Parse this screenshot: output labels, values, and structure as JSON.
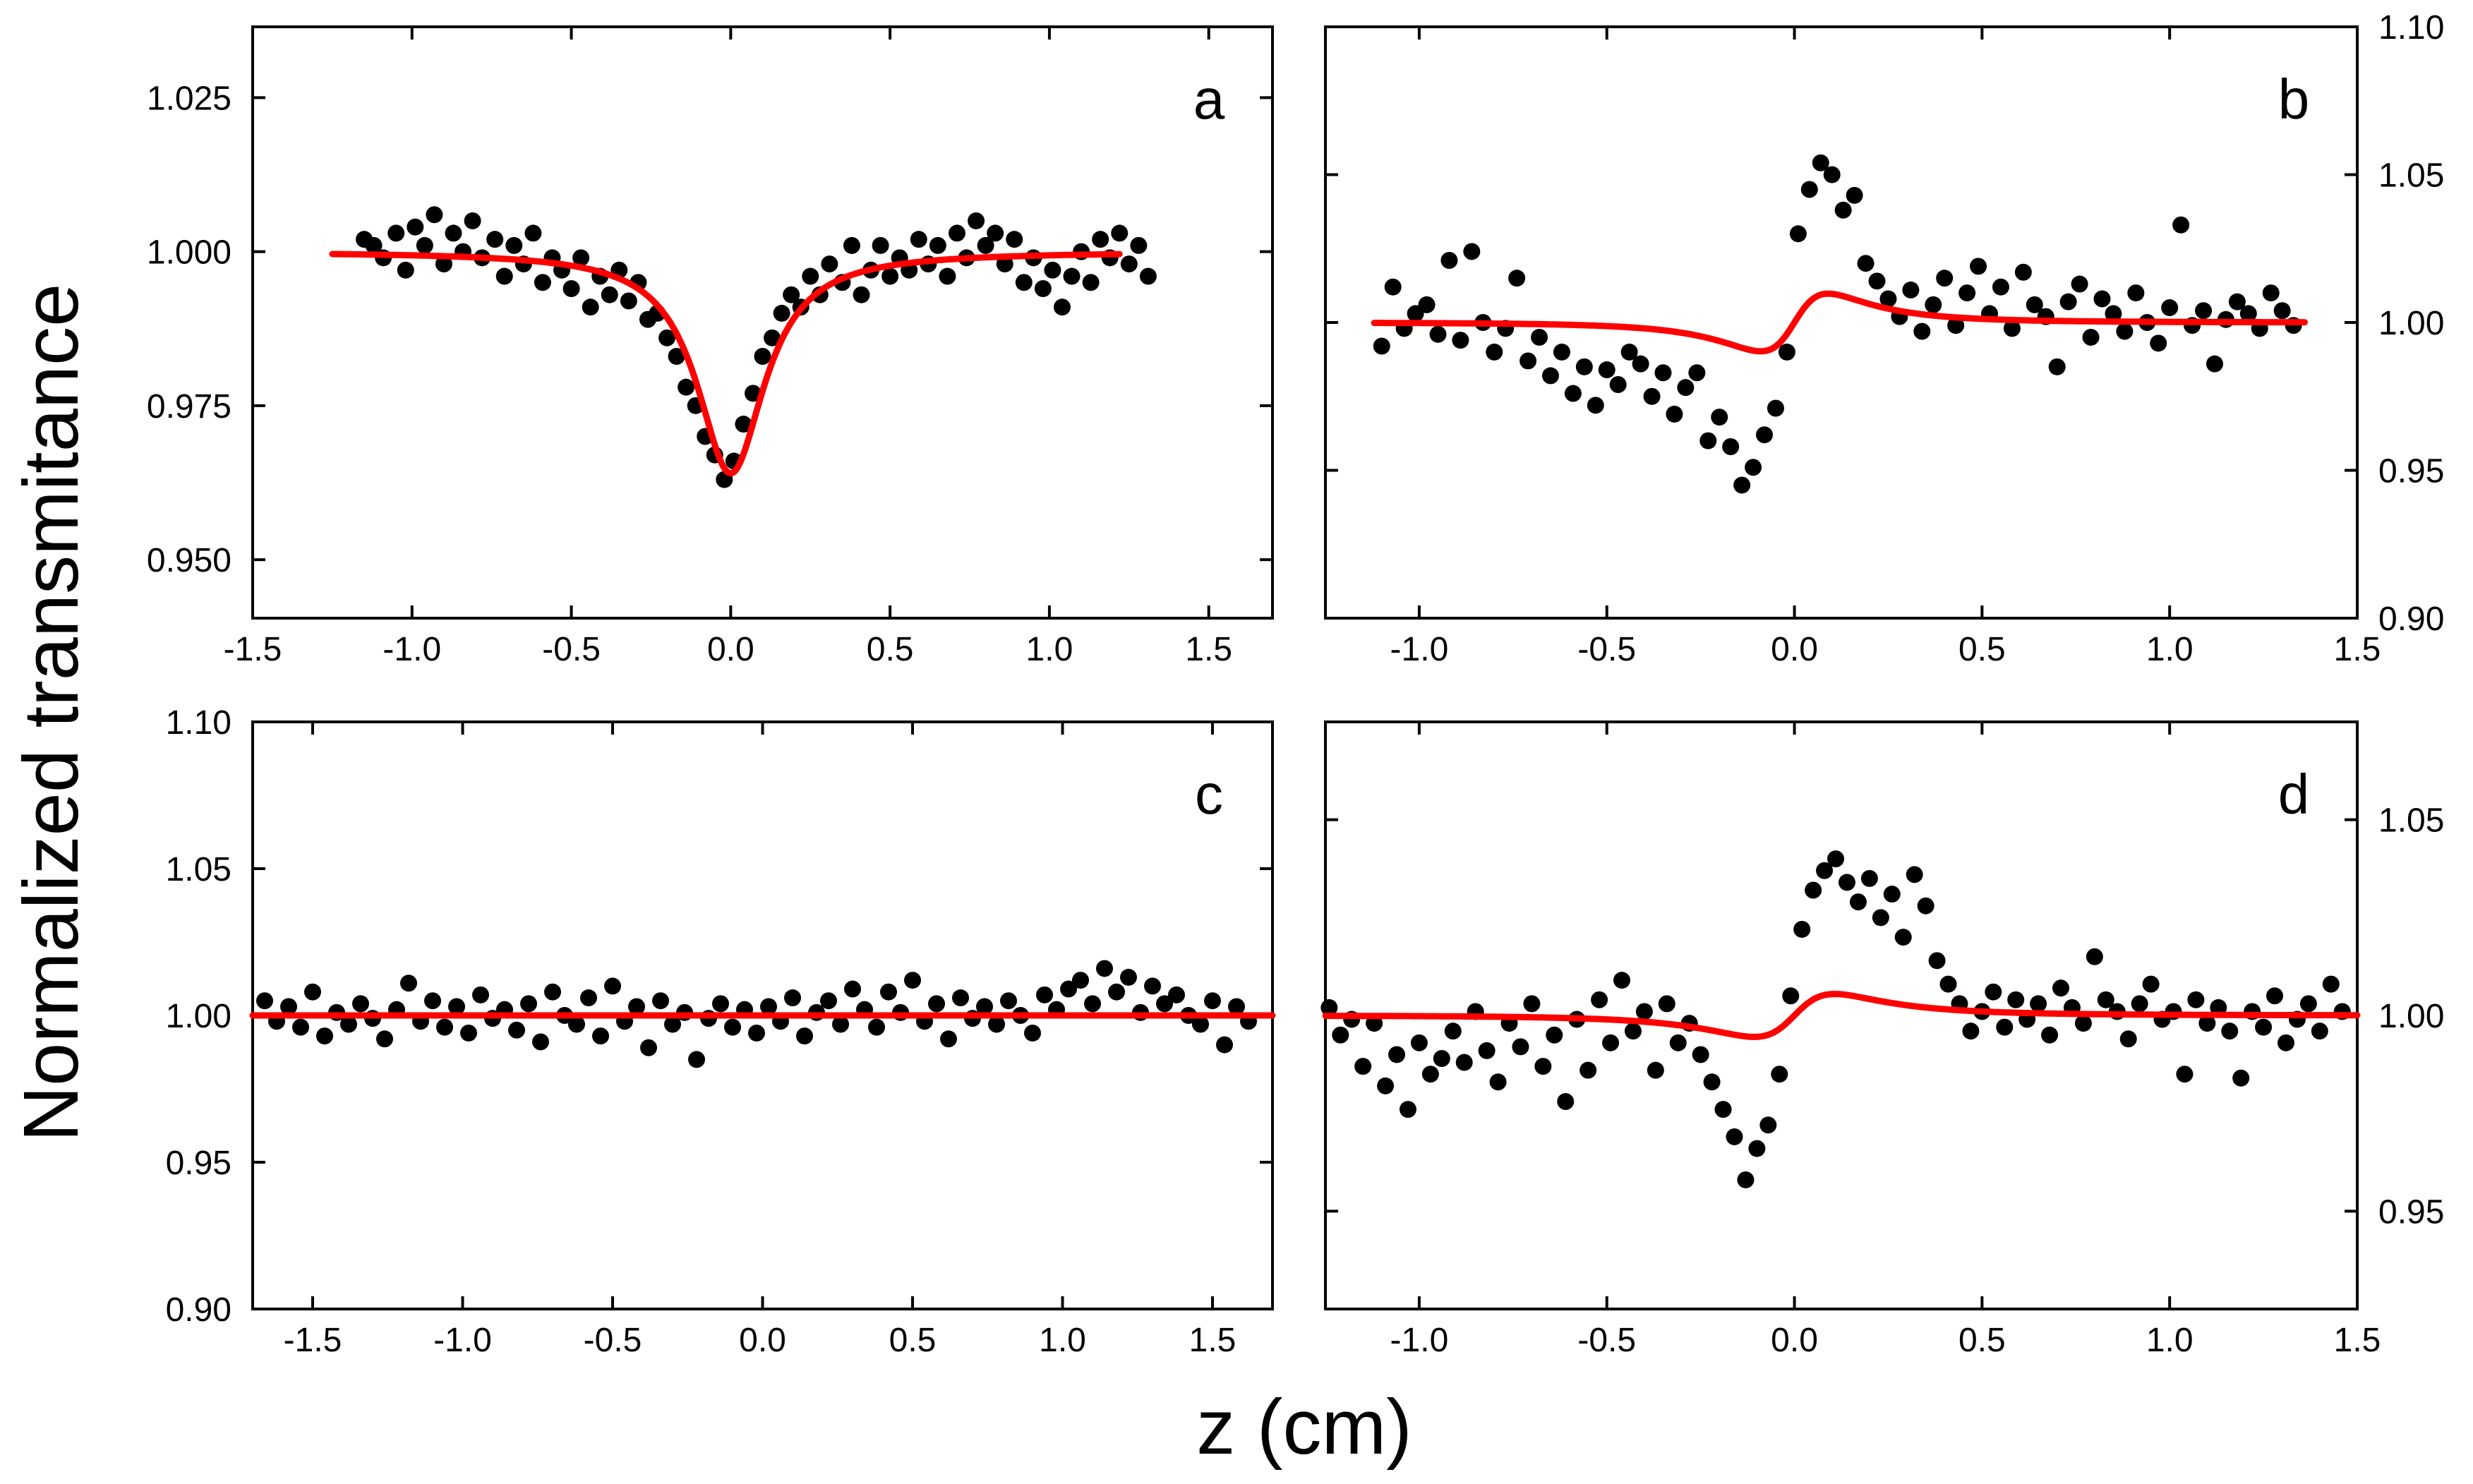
{
  "figure": {
    "ylabel": "Normalized transmitance",
    "xlabel": "z (cm)",
    "colors": {
      "fit": "#ff0000",
      "points": "#000000",
      "axes": "#000000"
    }
  },
  "chart_data": [
    {
      "panel": "a",
      "type": "scatter",
      "title": "a",
      "xlabel": "z (cm)",
      "ylabel": "Normalized transmitance",
      "xlim": [
        -1.5,
        1.7
      ],
      "ylim": [
        0.9405,
        1.0365
      ],
      "xticks": [
        -1.5,
        -1.0,
        -0.5,
        0.0,
        0.5,
        1.0,
        1.5
      ],
      "yticks": [
        0.95,
        0.975,
        1.0,
        1.025
      ],
      "xtick_labels": [
        "-1.5",
        "-1.0",
        "-0.5",
        "0.0",
        "0.5",
        "1.0",
        "1.5"
      ],
      "ytick_labels": [
        "0.950",
        "0.975",
        "1.000",
        "1.025"
      ],
      "yaxis_side": "left",
      "fit": {
        "model": "valley",
        "baseline": 1.0,
        "depth": 0.036,
        "width": 0.13,
        "xrange": [
          -1.25,
          1.22
        ]
      },
      "series": [
        {
          "name": "measured",
          "x": [
            -1.15,
            -1.12,
            -1.09,
            -1.05,
            -1.02,
            -0.99,
            -0.96,
            -0.93,
            -0.9,
            -0.87,
            -0.84,
            -0.81,
            -0.78,
            -0.74,
            -0.71,
            -0.68,
            -0.65,
            -0.62,
            -0.59,
            -0.56,
            -0.53,
            -0.5,
            -0.47,
            -0.44,
            -0.41,
            -0.38,
            -0.35,
            -0.32,
            -0.29,
            -0.26,
            -0.23,
            -0.2,
            -0.17,
            -0.14,
            -0.11,
            -0.08,
            -0.05,
            -0.02,
            0.01,
            0.04,
            0.07,
            0.1,
            0.13,
            0.16,
            0.19,
            0.22,
            0.25,
            0.28,
            0.31,
            0.35,
            0.38,
            0.41,
            0.44,
            0.47,
            0.5,
            0.53,
            0.56,
            0.59,
            0.62,
            0.65,
            0.68,
            0.71,
            0.74,
            0.77,
            0.8,
            0.83,
            0.86,
            0.89,
            0.92,
            0.95,
            0.98,
            1.01,
            1.04,
            1.07,
            1.1,
            1.13,
            1.16,
            1.19,
            1.22,
            1.25,
            1.28,
            1.31
          ],
          "y": [
            1.002,
            1.001,
            0.999,
            1.003,
            0.997,
            1.004,
            1.001,
            1.006,
            0.998,
            1.003,
            1.0,
            1.005,
            0.999,
            1.002,
            0.996,
            1.001,
            0.998,
            1.003,
            0.995,
            0.999,
            0.997,
            0.994,
            0.999,
            0.991,
            0.996,
            0.993,
            0.997,
            0.992,
            0.995,
            0.989,
            0.99,
            0.986,
            0.983,
            0.978,
            0.975,
            0.97,
            0.967,
            0.963,
            0.966,
            0.972,
            0.977,
            0.983,
            0.986,
            0.99,
            0.993,
            0.991,
            0.996,
            0.993,
            0.998,
            0.995,
            1.001,
            0.993,
            0.997,
            1.001,
            0.996,
            0.999,
            0.997,
            1.002,
            0.998,
            1.001,
            0.996,
            1.003,
            0.999,
            1.005,
            1.001,
            1.003,
            0.998,
            1.002,
            0.995,
            0.999,
            0.994,
            0.997,
            0.991,
            0.996,
            1.0,
            0.995,
            1.002,
            0.999,
            1.003,
            0.998,
            1.001,
            0.996
          ]
        }
      ]
    },
    {
      "panel": "b",
      "type": "scatter",
      "title": "b",
      "xlabel": "z (cm)",
      "ylabel": "Normalized transmitance",
      "xlim": [
        -1.25,
        1.5
      ],
      "ylim": [
        0.9,
        1.1
      ],
      "xticks": [
        -1.0,
        -0.5,
        0.0,
        0.5,
        1.0,
        1.5
      ],
      "yticks": [
        0.9,
        0.95,
        1.0,
        1.05,
        1.1
      ],
      "xtick_labels": [
        "-1.0",
        "-0.5",
        "0.0",
        "0.5",
        "1.0",
        "1.5"
      ],
      "ytick_labels": [
        "0.90",
        "0.95",
        "1.00",
        "1.05",
        "1.10"
      ],
      "yaxis_side": "right",
      "fit": {
        "model": "peak-valley",
        "baseline": 1.0,
        "amplitude": 0.048,
        "width": 0.105,
        "xrange": [
          -1.12,
          1.36
        ]
      },
      "series": [
        {
          "name": "measured",
          "x": [
            -1.1,
            -1.07,
            -1.04,
            -1.01,
            -0.98,
            -0.95,
            -0.92,
            -0.89,
            -0.86,
            -0.83,
            -0.8,
            -0.77,
            -0.74,
            -0.71,
            -0.68,
            -0.65,
            -0.62,
            -0.59,
            -0.56,
            -0.53,
            -0.5,
            -0.47,
            -0.44,
            -0.41,
            -0.38,
            -0.35,
            -0.32,
            -0.29,
            -0.26,
            -0.23,
            -0.2,
            -0.17,
            -0.14,
            -0.11,
            -0.08,
            -0.05,
            -0.02,
            0.01,
            0.04,
            0.07,
            0.1,
            0.13,
            0.16,
            0.19,
            0.22,
            0.25,
            0.28,
            0.31,
            0.34,
            0.37,
            0.4,
            0.43,
            0.46,
            0.49,
            0.52,
            0.55,
            0.58,
            0.61,
            0.64,
            0.67,
            0.7,
            0.73,
            0.76,
            0.79,
            0.82,
            0.85,
            0.88,
            0.91,
            0.94,
            0.97,
            1.0,
            1.03,
            1.06,
            1.09,
            1.12,
            1.15,
            1.18,
            1.21,
            1.24,
            1.27,
            1.3,
            1.33
          ],
          "y": [
            0.992,
            1.012,
            0.998,
            1.003,
            1.006,
            0.996,
            1.021,
            0.994,
            1.024,
            1.0,
            0.99,
            0.998,
            1.015,
            0.987,
            0.995,
            0.982,
            0.99,
            0.976,
            0.985,
            0.972,
            0.984,
            0.979,
            0.99,
            0.986,
            0.975,
            0.983,
            0.969,
            0.978,
            0.983,
            0.96,
            0.968,
            0.958,
            0.945,
            0.951,
            0.962,
            0.971,
            0.99,
            1.03,
            1.045,
            1.054,
            1.05,
            1.038,
            1.043,
            1.02,
            1.014,
            1.008,
            1.002,
            1.011,
            0.997,
            1.006,
            1.015,
            0.999,
            1.01,
            1.019,
            1.003,
            1.012,
            0.998,
            1.017,
            1.006,
            1.002,
            0.985,
            1.007,
            1.013,
            0.995,
            1.008,
            1.003,
            0.997,
            1.01,
            1.0,
            0.993,
            1.005,
            1.033,
            0.999,
            1.004,
            0.986,
            1.001,
            1.007,
            1.003,
            0.998,
            1.01,
            1.004,
            0.999
          ]
        }
      ]
    },
    {
      "panel": "c",
      "type": "scatter",
      "title": "c",
      "xlabel": "z (cm)",
      "ylabel": "Normalized transmitance",
      "xlim": [
        -1.7,
        1.7
      ],
      "ylim": [
        0.9,
        1.1
      ],
      "xticks": [
        -1.5,
        -1.0,
        -0.5,
        0.0,
        0.5,
        1.0,
        1.5
      ],
      "yticks": [
        0.9,
        0.95,
        1.0,
        1.05,
        1.1
      ],
      "xtick_labels": [
        "-1.5",
        "-1.0",
        "-0.5",
        "0.0",
        "0.5",
        "1.0",
        "1.5"
      ],
      "ytick_labels": [
        "0.90",
        "0.95",
        "1.00",
        "1.05",
        "1.10"
      ],
      "yaxis_side": "left",
      "fit": {
        "model": "flat",
        "baseline": 1.0,
        "xrange": [
          -1.7,
          1.7
        ]
      },
      "series": [
        {
          "name": "measured",
          "x": [
            -1.66,
            -1.62,
            -1.58,
            -1.54,
            -1.5,
            -1.46,
            -1.42,
            -1.38,
            -1.34,
            -1.3,
            -1.26,
            -1.22,
            -1.18,
            -1.14,
            -1.1,
            -1.06,
            -1.02,
            -0.98,
            -0.94,
            -0.9,
            -0.86,
            -0.82,
            -0.78,
            -0.74,
            -0.7,
            -0.66,
            -0.62,
            -0.58,
            -0.54,
            -0.5,
            -0.46,
            -0.42,
            -0.38,
            -0.34,
            -0.3,
            -0.26,
            -0.22,
            -0.18,
            -0.14,
            -0.1,
            -0.06,
            -0.02,
            0.02,
            0.06,
            0.1,
            0.14,
            0.18,
            0.22,
            0.26,
            0.3,
            0.34,
            0.38,
            0.42,
            0.46,
            0.5,
            0.54,
            0.58,
            0.62,
            0.66,
            0.7,
            0.74,
            0.78,
            0.82,
            0.86,
            0.9,
            0.94,
            0.98,
            1.02,
            1.06,
            1.1,
            1.14,
            1.18,
            1.22,
            1.26,
            1.3,
            1.34,
            1.38,
            1.42,
            1.46,
            1.5,
            1.54,
            1.58,
            1.62
          ],
          "y": [
            1.005,
            0.998,
            1.003,
            0.996,
            1.008,
            0.993,
            1.001,
            0.997,
            1.004,
            0.999,
            0.992,
            1.002,
            1.011,
            0.998,
            1.005,
            0.996,
            1.003,
            0.994,
            1.007,
            0.999,
            1.002,
            0.995,
            1.004,
            0.991,
            1.008,
            1.0,
            0.997,
            1.006,
            0.993,
            1.01,
            0.998,
            1.003,
            0.989,
            1.005,
            0.997,
            1.001,
            0.985,
            0.999,
            1.004,
            0.996,
            1.002,
            0.994,
            1.003,
            0.998,
            1.006,
            0.993,
            1.001,
            1.005,
            0.997,
            1.009,
            1.002,
            0.996,
            1.008,
            1.001,
            1.012,
            0.998,
            1.004,
            0.992,
            1.006,
            0.999,
            1.003,
            0.997,
            1.005,
            1.0,
            0.994,
            1.007,
            1.002,
            1.009,
            1.012,
            1.004,
            1.016,
            1.008,
            1.013,
            1.001,
            1.01,
            1.004,
            1.007,
            1.0,
            0.997,
            1.005,
            0.99,
            1.003,
            0.998
          ]
        }
      ]
    },
    {
      "panel": "d",
      "type": "scatter",
      "title": "d",
      "xlabel": "z (cm)",
      "ylabel": "Normalized transmitance",
      "xlim": [
        -1.25,
        1.5
      ],
      "ylim": [
        0.925,
        1.075
      ],
      "xticks": [
        -1.0,
        -0.5,
        0.0,
        0.5,
        1.0,
        1.5
      ],
      "yticks": [
        0.95,
        1.0,
        1.05
      ],
      "xtick_labels": [
        "-1.0",
        "-0.5",
        "0.0",
        "0.5",
        "1.0",
        "1.5"
      ],
      "ytick_labels": [
        "0.95",
        "1.00",
        "1.05"
      ],
      "yaxis_side": "right",
      "fit": {
        "model": "peak-valley",
        "baseline": 1.0,
        "amplitude": 0.027,
        "width": 0.125,
        "xrange": [
          -1.25,
          1.5
        ]
      },
      "series": [
        {
          "name": "measured",
          "x": [
            -1.24,
            -1.21,
            -1.18,
            -1.15,
            -1.12,
            -1.09,
            -1.06,
            -1.03,
            -1.0,
            -0.97,
            -0.94,
            -0.91,
            -0.88,
            -0.85,
            -0.82,
            -0.79,
            -0.76,
            -0.73,
            -0.7,
            -0.67,
            -0.64,
            -0.61,
            -0.58,
            -0.55,
            -0.52,
            -0.49,
            -0.46,
            -0.43,
            -0.4,
            -0.37,
            -0.34,
            -0.31,
            -0.28,
            -0.25,
            -0.22,
            -0.19,
            -0.16,
            -0.13,
            -0.1,
            -0.07,
            -0.04,
            -0.01,
            0.02,
            0.05,
            0.08,
            0.11,
            0.14,
            0.17,
            0.2,
            0.23,
            0.26,
            0.29,
            0.32,
            0.35,
            0.38,
            0.41,
            0.44,
            0.47,
            0.5,
            0.53,
            0.56,
            0.59,
            0.62,
            0.65,
            0.68,
            0.71,
            0.74,
            0.77,
            0.8,
            0.83,
            0.86,
            0.89,
            0.92,
            0.95,
            0.98,
            1.01,
            1.04,
            1.07,
            1.1,
            1.13,
            1.16,
            1.19,
            1.22,
            1.25,
            1.28,
            1.31,
            1.34,
            1.37,
            1.4,
            1.43,
            1.46
          ],
          "y": [
            1.002,
            0.995,
            0.999,
            0.987,
            0.998,
            0.982,
            0.99,
            0.976,
            0.993,
            0.985,
            0.989,
            0.996,
            0.988,
            1.001,
            0.991,
            0.983,
            0.998,
            0.992,
            1.003,
            0.987,
            0.995,
            0.978,
            0.999,
            0.986,
            1.004,
            0.993,
            1.009,
            0.996,
            1.001,
            0.986,
            1.003,
            0.993,
            0.998,
            0.99,
            0.983,
            0.976,
            0.969,
            0.958,
            0.966,
            0.972,
            0.985,
            1.005,
            1.022,
            1.032,
            1.037,
            1.04,
            1.034,
            1.029,
            1.035,
            1.025,
            1.031,
            1.02,
            1.036,
            1.028,
            1.014,
            1.008,
            1.003,
            0.996,
            1.001,
            1.006,
            0.997,
            1.004,
            0.999,
            1.003,
            0.995,
            1.007,
            1.002,
            0.998,
            1.015,
            1.004,
            1.001,
            0.994,
            1.003,
            1.008,
            0.999,
            1.001,
            0.985,
            1.004,
            0.998,
            1.002,
            0.996,
            0.984,
            1.001,
            0.997,
            1.005,
            0.993,
            0.999,
            1.003,
            0.996,
            1.008,
            1.001
          ]
        }
      ]
    }
  ]
}
